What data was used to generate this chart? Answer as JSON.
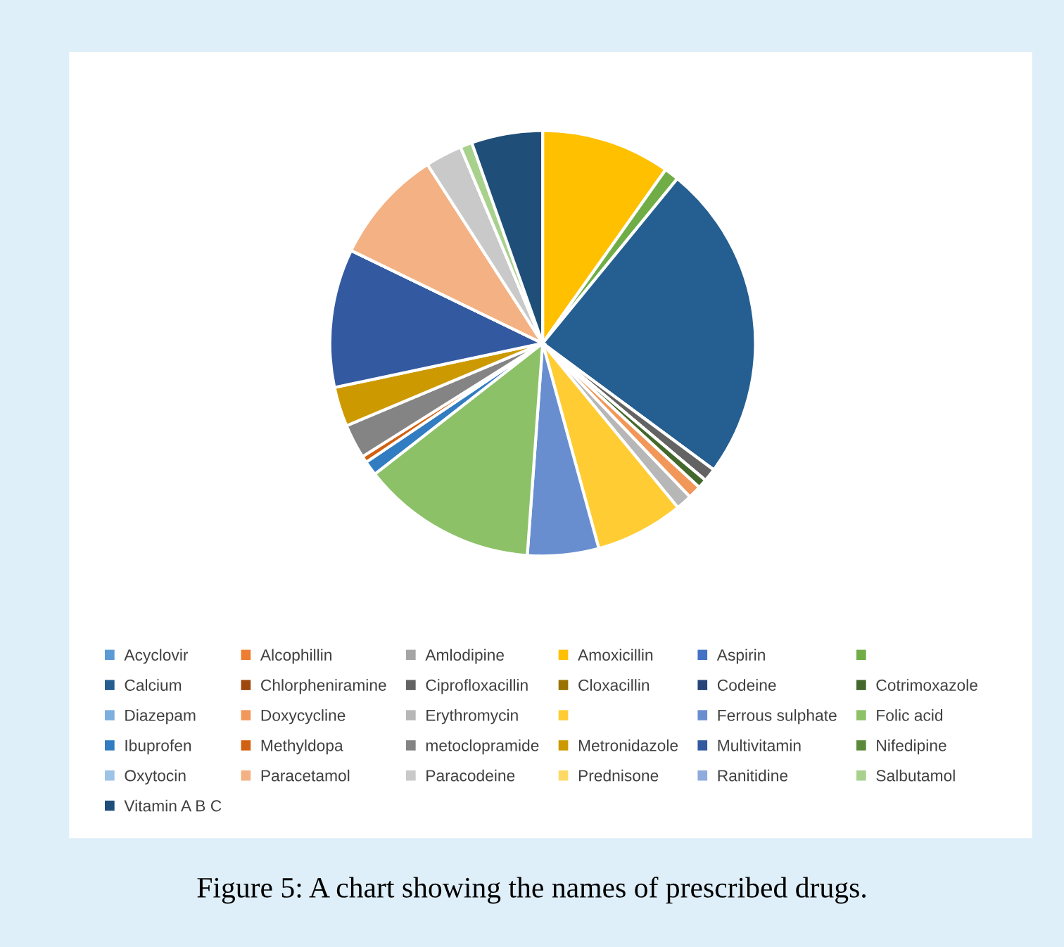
{
  "chart_data": {
    "type": "pie",
    "title": "Figure 5: A chart showing the names of prescribed drugs.",
    "categories": [
      "Acyclovir",
      "Alcophillin",
      "Amlodipine",
      "Amoxicillin",
      "Aspirin",
      null,
      "Calcium",
      "Chlorpheniramine",
      "Ciprofloxacillin",
      "Cloxacillin",
      "Codeine",
      "Cotrimoxazole",
      "Diazepam",
      "Doxycycline",
      "Erythromycin",
      null,
      "Ferrous sulphate",
      "Folic acid",
      "Ibuprofen",
      "Methyldopa",
      "metoclopramide",
      "Metronidazole",
      "Multivitamin",
      "Nifedipine",
      "Oxytocin",
      "Paracetamol",
      "Paracodeine",
      "Prednisone",
      "Ranitidine",
      "Salbutamol",
      "Vitamin A B C"
    ],
    "values": [
      0,
      0,
      0,
      9.8,
      0,
      1.1,
      24.2,
      0,
      1,
      0,
      0,
      0.7,
      0,
      1,
      1.2,
      6.7,
      5.4,
      13.3,
      1.1,
      0.5,
      2.6,
      3,
      10.5,
      0,
      0,
      8.7,
      2.8,
      0,
      0,
      0.9,
      5.4
    ],
    "colors": [
      "#5b9bd5",
      "#ed7d31",
      "#a5a5a5",
      "#ffc000",
      "#4472c4",
      "#70ad47",
      "#255e91",
      "#9e480e",
      "#636363",
      "#997300",
      "#264478",
      "#43682b",
      "#7cafdd",
      "#f1975a",
      "#b7b7b7",
      "#ffcd33",
      "#698ed0",
      "#8cc168",
      "#327dc2",
      "#d26012",
      "#848484",
      "#cc9a00",
      "#335aa1",
      "#5a8a39",
      "#9dc3e6",
      "#f4b183",
      "#c9c9c9",
      "#ffd966",
      "#8faadc",
      "#a9d18e",
      "#1f4e79"
    ],
    "legend": "bottom"
  }
}
